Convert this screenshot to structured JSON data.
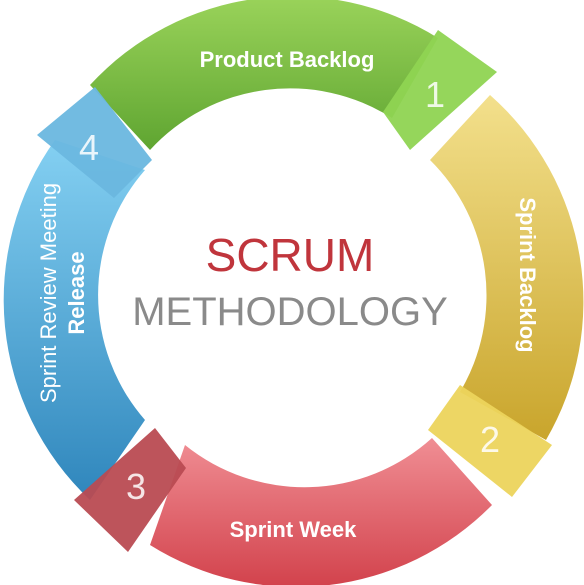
{
  "center": {
    "title": "SCRUM",
    "subtitle": "METHODOLOGY",
    "title_color": "#c0353c",
    "subtitle_color": "#8a8a8a"
  },
  "steps": [
    {
      "number": "1",
      "label": "Product Backlog",
      "color": "#79c046",
      "tab_color": "#8fd452"
    },
    {
      "number": "2",
      "label": "Sprint Backlog",
      "color": "#d8bb3e",
      "tab_color": "#ecd45c"
    },
    {
      "number": "3",
      "label": "Sprint Week",
      "color": "#de5a64",
      "tab_color": "#b94b52"
    },
    {
      "number": "4",
      "label": "Sprint Review Meeting",
      "label2": "Release",
      "color": "#3e9fd2",
      "tab_color": "#6ab7df"
    }
  ]
}
